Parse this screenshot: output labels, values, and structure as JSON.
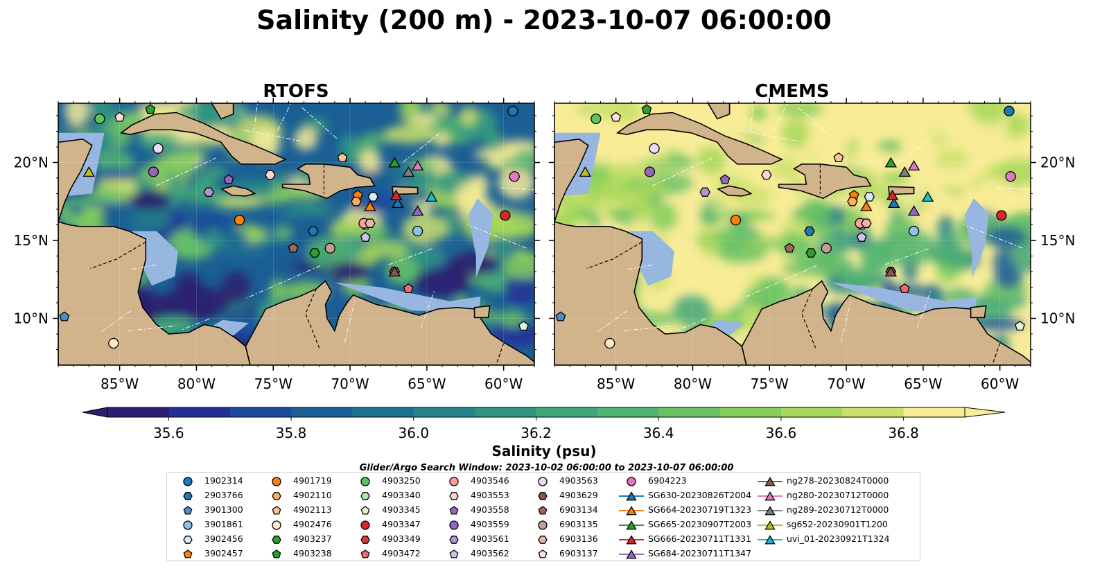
{
  "title": "Salinity (200 m) - 2023-10-07 06:00:00",
  "panels": [
    {
      "title": "RTOFS"
    },
    {
      "title": "CMEMS"
    }
  ],
  "colors": {
    "land": "#d2b48c",
    "shallow": "#97b6e0",
    "cmap": [
      "#2b1e6e",
      "#232f96",
      "#1b4a9c",
      "#1b5f95",
      "#1f7190",
      "#258389",
      "#2f9582",
      "#3ea67a",
      "#52b471",
      "#6ac265",
      "#86ce5c",
      "#a8d85a",
      "#cbe06c",
      "#f8ec96"
    ]
  },
  "colorbar": {
    "label": "Salinity (psu)",
    "ticks": [
      "35.6",
      "35.8",
      "36.0",
      "36.2",
      "36.4",
      "36.6",
      "36.8"
    ],
    "tick_values": [
      35.6,
      35.8,
      36.0,
      36.2,
      36.4,
      36.6,
      36.8
    ],
    "range": [
      35.5,
      36.9
    ]
  },
  "axes": {
    "lon_ticks": [
      "85°W",
      "80°W",
      "75°W",
      "70°W",
      "65°W",
      "60°W"
    ],
    "lon_values": [
      -85,
      -80,
      -75,
      -70,
      -65,
      -60
    ],
    "lat_ticks": [
      "20°N",
      "15°N",
      "10°N"
    ],
    "lat_values": [
      20,
      15,
      10
    ],
    "lon_range": [
      -89,
      -58
    ],
    "lat_range": [
      7,
      23.8
    ]
  },
  "window_note": "Glider/Argo Search Window: 2023-10-02 06:00:00 to 2023-10-07 06:00:00",
  "legend": [
    {
      "label": "1902314",
      "marker": "circle",
      "color": "#1f77b4"
    },
    {
      "label": "2903766",
      "marker": "hexagon",
      "color": "#1f77b4"
    },
    {
      "label": "3901300",
      "marker": "pentagon",
      "color": "#4a90c8"
    },
    {
      "label": "3901861",
      "marker": "circle",
      "color": "#8ec1e8"
    },
    {
      "label": "3902456",
      "marker": "hexagon",
      "color": "#d5ecfb"
    },
    {
      "label": "3902457",
      "marker": "pentagon",
      "color": "#ff7f0e"
    },
    {
      "label": "4901719",
      "marker": "circle",
      "color": "#ff7f0e"
    },
    {
      "label": "4902110",
      "marker": "hexagon",
      "color": "#ffab5e"
    },
    {
      "label": "4902113",
      "marker": "pentagon",
      "color": "#ffc58f"
    },
    {
      "label": "4902476",
      "marker": "circle",
      "color": "#ffe8c8"
    },
    {
      "label": "4903237",
      "marker": "hexagon",
      "color": "#2ca02c"
    },
    {
      "label": "4903238",
      "marker": "pentagon",
      "color": "#2ca02c"
    },
    {
      "label": "4903250",
      "marker": "circle",
      "color": "#5fc35f"
    },
    {
      "label": "4903340",
      "marker": "hexagon",
      "color": "#b3e6b3"
    },
    {
      "label": "4903345",
      "marker": "pentagon",
      "color": "#e1f5d8"
    },
    {
      "label": "4903347",
      "marker": "circle",
      "color": "#d62728"
    },
    {
      "label": "4903349",
      "marker": "hexagon",
      "color": "#d93b3b"
    },
    {
      "label": "4903472",
      "marker": "pentagon",
      "color": "#ef6b6b"
    },
    {
      "label": "4903546",
      "marker": "circle",
      "color": "#ff9f9a"
    },
    {
      "label": "4903553",
      "marker": "hexagon",
      "color": "#ffd3d0"
    },
    {
      "label": "4903558",
      "marker": "pentagon",
      "color": "#9467bd"
    },
    {
      "label": "4903559",
      "marker": "circle",
      "color": "#9467bd"
    },
    {
      "label": "4903561",
      "marker": "hexagon",
      "color": "#b294d6"
    },
    {
      "label": "4903562",
      "marker": "pentagon",
      "color": "#d3c0eb"
    },
    {
      "label": "4903563",
      "marker": "circle",
      "color": "#eadcf8"
    },
    {
      "label": "4903629",
      "marker": "hexagon",
      "color": "#8c564b"
    },
    {
      "label": "6903134",
      "marker": "pentagon",
      "color": "#a0685c"
    },
    {
      "label": "6903135",
      "marker": "circle",
      "color": "#c49c94"
    },
    {
      "label": "6903136",
      "marker": "hexagon",
      "color": "#e8b7a6"
    },
    {
      "label": "6903137",
      "marker": "pentagon",
      "color": "#ffe0d6"
    },
    {
      "label": "6904223",
      "marker": "circle",
      "color": "#e377c2"
    },
    {
      "label": "SG630-20230826T2004",
      "marker": "triangle",
      "color": "#1f77b4"
    },
    {
      "label": "SG664-20230719T1323",
      "marker": "triangle",
      "color": "#ff7f0e"
    },
    {
      "label": "SG665-20230907T2003",
      "marker": "triangle",
      "color": "#2ca02c"
    },
    {
      "label": "SG666-20230711T1331",
      "marker": "triangle",
      "color": "#d62728"
    },
    {
      "label": "SG684-20230711T1347",
      "marker": "triangle",
      "color": "#9467bd"
    },
    {
      "label": "ng278-20230824T0000",
      "marker": "triangle",
      "color": "#8c564b"
    },
    {
      "label": "ng280-20230712T0000",
      "marker": "triangle",
      "color": "#e377c2"
    },
    {
      "label": "ng289-20230712T0000",
      "marker": "triangle",
      "color": "#7f7f7f"
    },
    {
      "label": "sg652-20230901T1200",
      "marker": "triangle",
      "color": "#bcbd22"
    },
    {
      "label": "uvi_01-20230921T1324",
      "marker": "triangle",
      "color": "#17becf"
    }
  ],
  "chart_data": {
    "type": "map",
    "title": "Salinity (200 m) - 2023-10-07 06:00:00",
    "variable": "Salinity (psu)",
    "panels": [
      "RTOFS",
      "CMEMS"
    ],
    "grid": true,
    "observations": [
      {
        "id": "1902314",
        "lon": -59.4,
        "lat": 23.3
      },
      {
        "id": "2903766",
        "lon": -72.4,
        "lat": 15.6
      },
      {
        "id": "3901300",
        "lon": -88.6,
        "lat": 10.1
      },
      {
        "id": "3901861",
        "lon": -65.6,
        "lat": 15.6
      },
      {
        "id": "3902456",
        "lon": -68.5,
        "lat": 17.8
      },
      {
        "id": "3902457",
        "lon": -69.5,
        "lat": 17.9
      },
      {
        "id": "4901719",
        "lon": -77.2,
        "lat": 16.3
      },
      {
        "id": "4902110",
        "lon": -69.6,
        "lat": 17.5
      },
      {
        "id": "4902113",
        "lon": -70.5,
        "lat": 20.3
      },
      {
        "id": "4902476",
        "lon": -85.4,
        "lat": 8.4
      },
      {
        "id": "4903237",
        "lon": -72.3,
        "lat": 14.2
      },
      {
        "id": "4903238",
        "lon": -83.0,
        "lat": 23.4
      },
      {
        "id": "4903250",
        "lon": -86.3,
        "lat": 22.8
      },
      {
        "id": "4903340",
        "lon": -69.0,
        "lat": 16.0
      },
      {
        "id": "4903345",
        "lon": -58.7,
        "lat": 9.5
      },
      {
        "id": "4903347",
        "lon": -59.9,
        "lat": 16.6
      },
      {
        "id": "4903349",
        "lon": -67.1,
        "lat": 13.0
      },
      {
        "id": "4903472",
        "lon": -66.2,
        "lat": 11.9
      },
      {
        "id": "4903546",
        "lon": -69.1,
        "lat": 16.1
      },
      {
        "id": "4903553",
        "lon": -75.2,
        "lat": 19.2
      },
      {
        "id": "4903558",
        "lon": -77.9,
        "lat": 18.9
      },
      {
        "id": "4903559",
        "lon": -82.8,
        "lat": 19.4
      },
      {
        "id": "4903561",
        "lon": -79.2,
        "lat": 18.1
      },
      {
        "id": "4903562",
        "lon": -69.0,
        "lat": 15.2
      },
      {
        "id": "4903563",
        "lon": -82.5,
        "lat": 20.9
      },
      {
        "id": "4903629",
        "lon": -67.1,
        "lat": 13.0
      },
      {
        "id": "6903134",
        "lon": -73.7,
        "lat": 14.5
      },
      {
        "id": "6903135",
        "lon": -71.3,
        "lat": 14.5
      },
      {
        "id": "6903136",
        "lon": -68.7,
        "lat": 16.1
      },
      {
        "id": "6903137",
        "lon": -85.0,
        "lat": 22.9
      },
      {
        "id": "6904223",
        "lon": -59.3,
        "lat": 19.1
      },
      {
        "id": "SG630-20230826T2004",
        "lon": -66.9,
        "lat": 17.4
      },
      {
        "id": "SG664-20230719T1323",
        "lon": -68.7,
        "lat": 17.2
      },
      {
        "id": "SG665-20230907T2003",
        "lon": -67.1,
        "lat": 20.0
      },
      {
        "id": "SG666-20230711T1331",
        "lon": -67.0,
        "lat": 17.9
      },
      {
        "id": "SG684-20230711T1347",
        "lon": -65.6,
        "lat": 16.9
      },
      {
        "id": "ng278-20230824T0000",
        "lon": -67.1,
        "lat": 13.0
      },
      {
        "id": "ng280-20230712T0000",
        "lon": -65.6,
        "lat": 19.8
      },
      {
        "id": "ng289-20230712T0000",
        "lon": -66.2,
        "lat": 19.4
      },
      {
        "id": "sg652-20230901T1200",
        "lon": -87.0,
        "lat": 19.4
      },
      {
        "id": "uvi_01-20230921T1324",
        "lon": -64.7,
        "lat": 17.8
      }
    ]
  }
}
